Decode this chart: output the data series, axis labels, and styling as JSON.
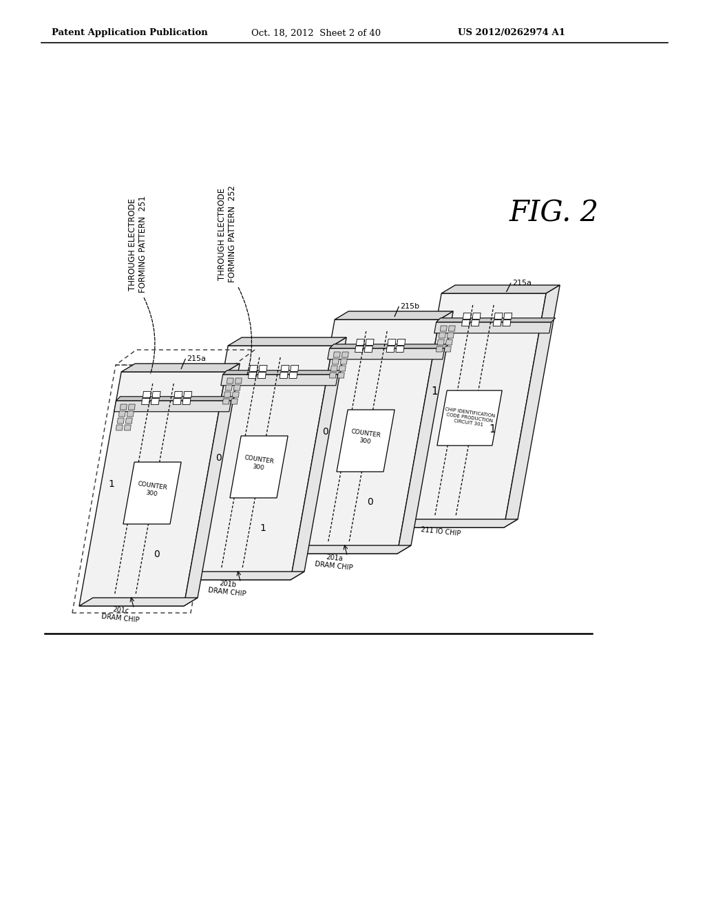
{
  "bg_color": "#ffffff",
  "header_left": "Patent Application Publication",
  "header_mid": "Oct. 18, 2012  Sheet 2 of 40",
  "header_right": "US 2012/0262974 A1",
  "fig_label": "FIG. 2",
  "label_251": "THROUGH ELECTRODE\nFORMING PATTERN  251",
  "label_252": "THROUGH ELECTRODE\nFORMING PATTERN  252",
  "label_215a_left": "215a",
  "label_215b": "215b",
  "label_215a_right": "215a",
  "chip_id_label": "CHIP IDENTIFICATION\nCODE PRODUCTION\nCIRCUIT 301",
  "chip_labels": [
    "201c\nDRAM CHIP",
    "201b\nDRAM CHIP",
    "201a\nDRAM CHIP",
    "211 IO CHIP"
  ],
  "chip_vals": [
    [
      "1",
      "0"
    ],
    [
      "0",
      "1"
    ],
    [
      "0",
      "0"
    ],
    [
      "1",
      "1"
    ]
  ],
  "is_dashed": [
    true,
    false,
    false,
    false
  ],
  "is_io": [
    false,
    false,
    false,
    true
  ],
  "ec": "#111111",
  "face_color_front": "#f2f2f2",
  "face_color_top": "#d8d8d8",
  "face_color_side": "#e5e5e5"
}
